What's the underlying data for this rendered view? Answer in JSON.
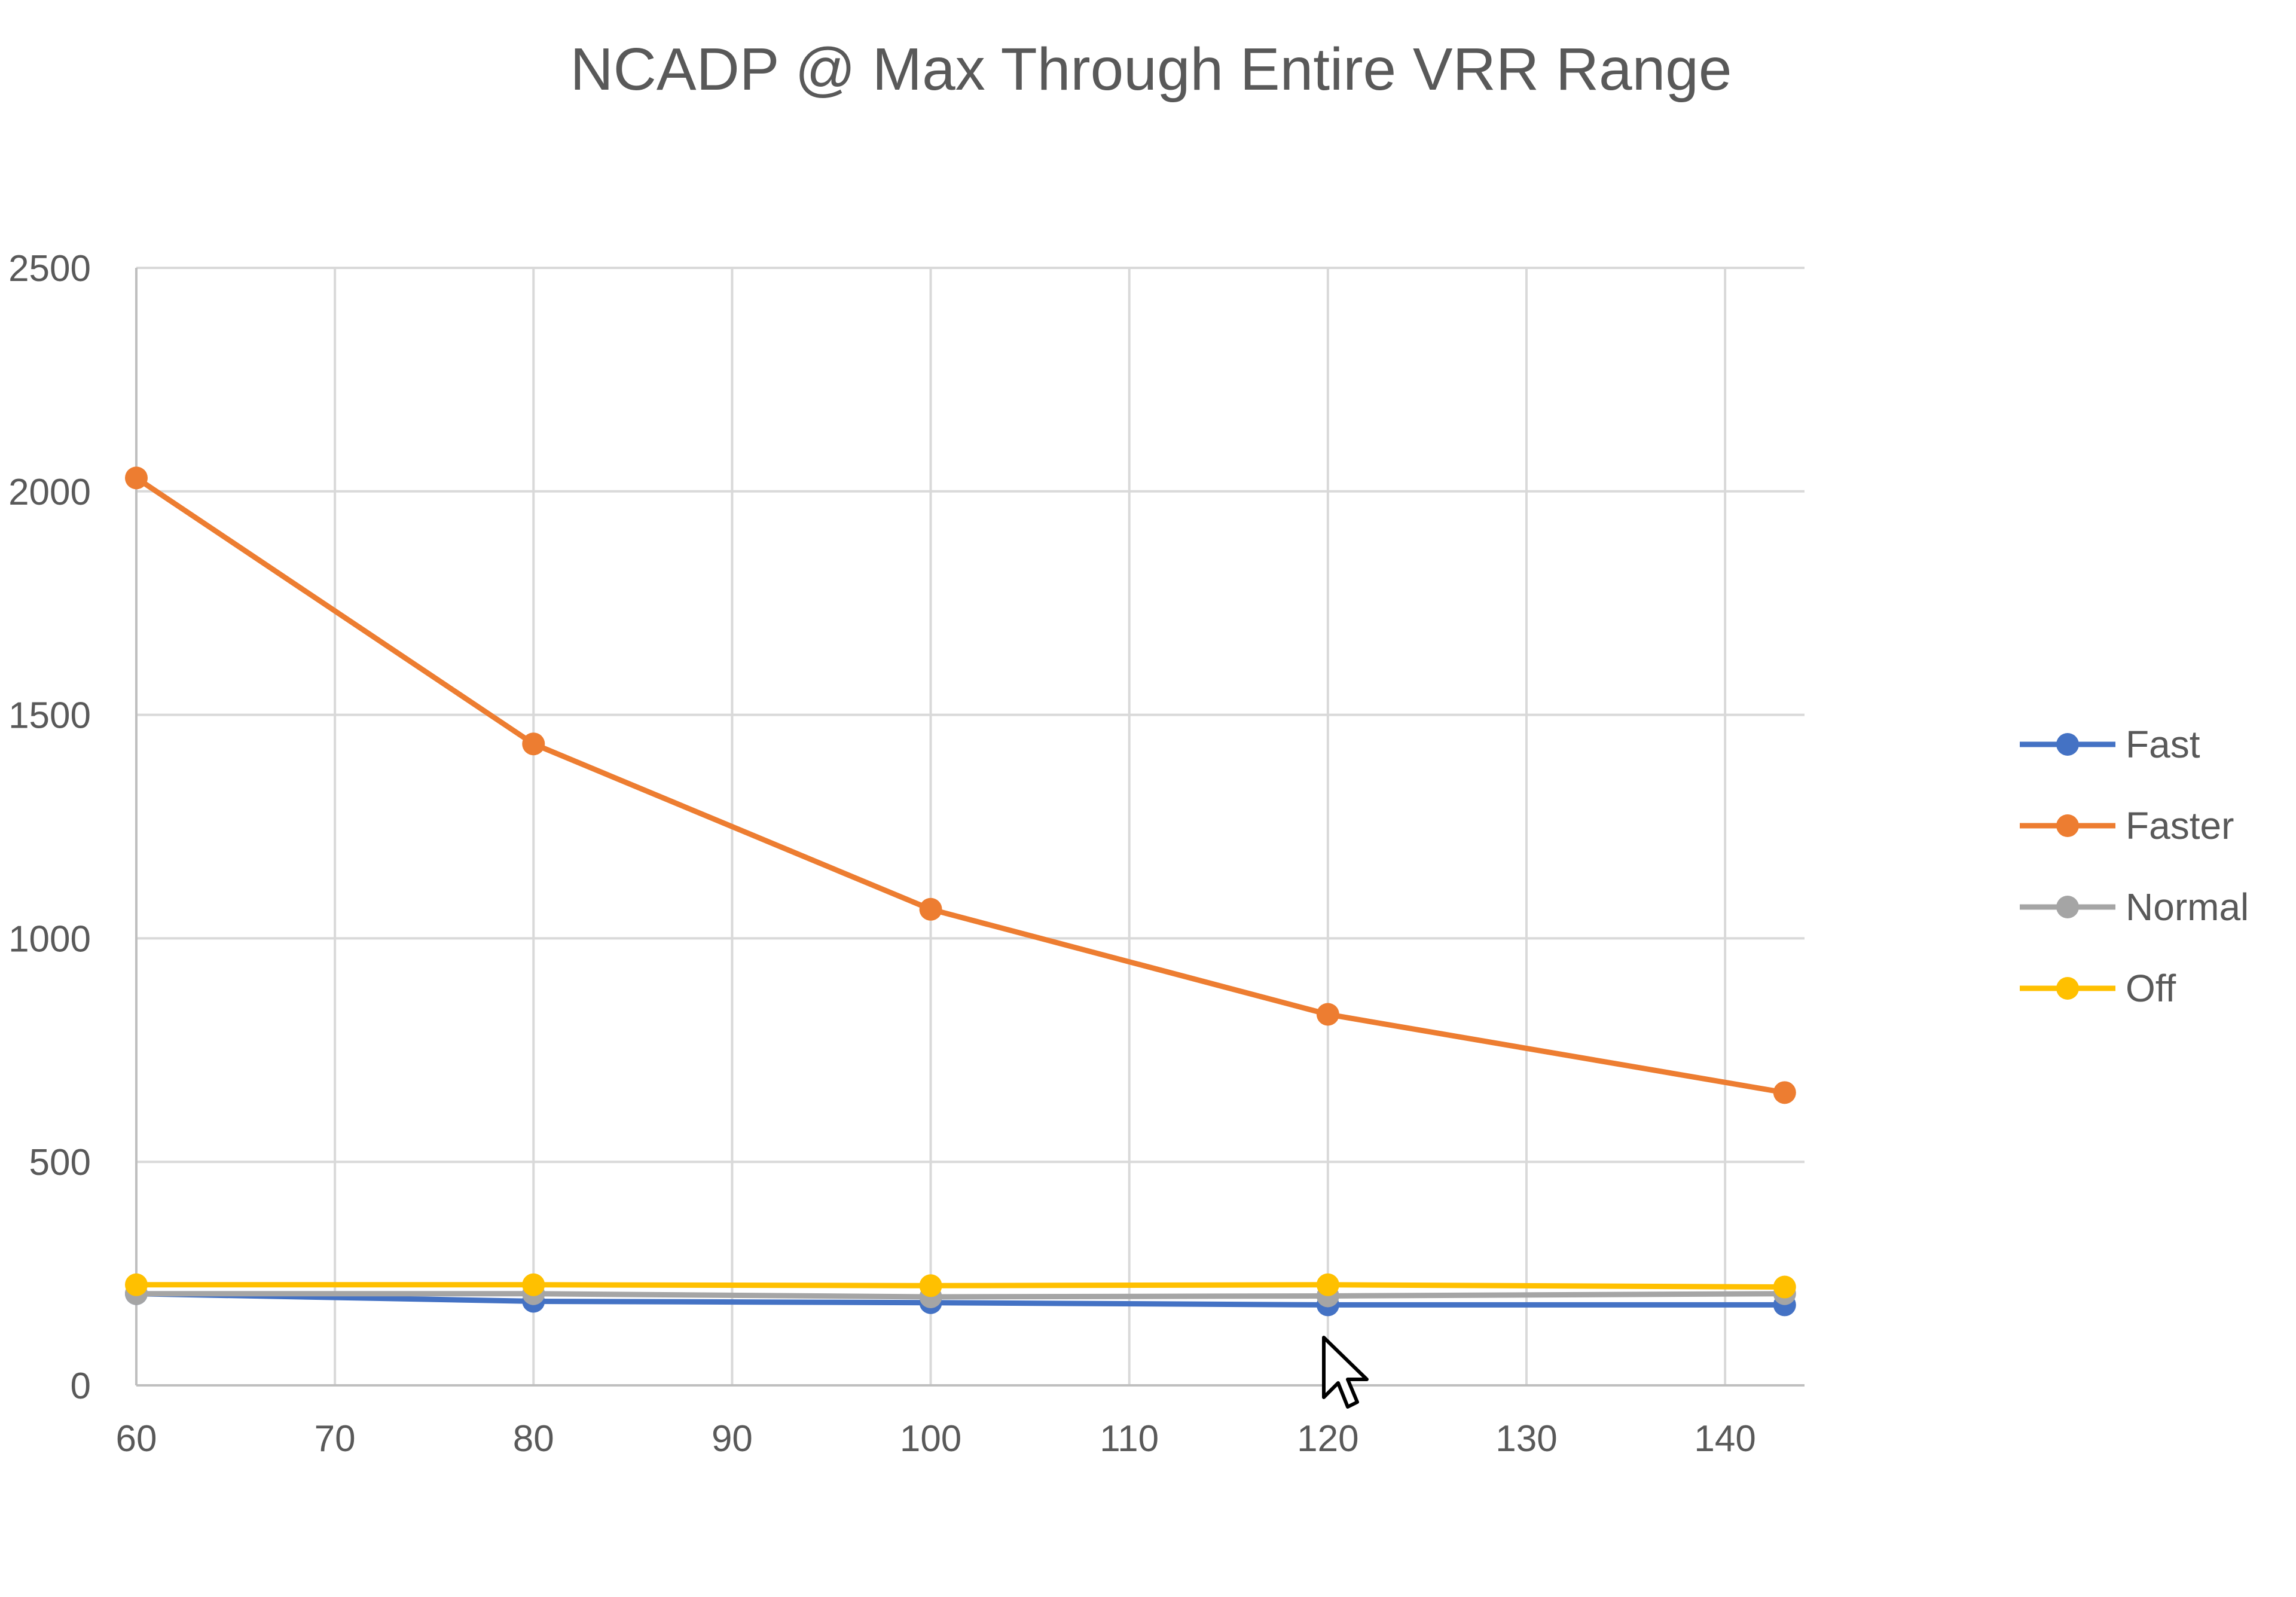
{
  "chart_data": {
    "type": "line",
    "title": "NCADP @ Max Through Entire VRR Range",
    "xlabel": "",
    "ylabel": "",
    "x": [
      60,
      80,
      100,
      120,
      143
    ],
    "xlim": [
      60,
      144
    ],
    "ylim": [
      0,
      2500
    ],
    "xticks": [
      60,
      70,
      80,
      90,
      100,
      110,
      120,
      130,
      140
    ],
    "yticks": [
      0,
      500,
      1000,
      1500,
      2000,
      2500
    ],
    "grid": true,
    "legend_position": "right",
    "series": [
      {
        "name": "Fast",
        "color": "#4472C4",
        "values": [
          205,
          188,
          185,
          180,
          180
        ]
      },
      {
        "name": "Faster",
        "color": "#ED7D31",
        "values": [
          2030,
          1435,
          1065,
          830,
          655
        ]
      },
      {
        "name": "Normal",
        "color": "#A5A5A5",
        "values": [
          205,
          205,
          198,
          200,
          205
        ]
      },
      {
        "name": "Off",
        "color": "#FFC000",
        "values": [
          225,
          225,
          223,
          225,
          220
        ]
      }
    ]
  },
  "cursor_icon": "mouse-pointer-icon"
}
